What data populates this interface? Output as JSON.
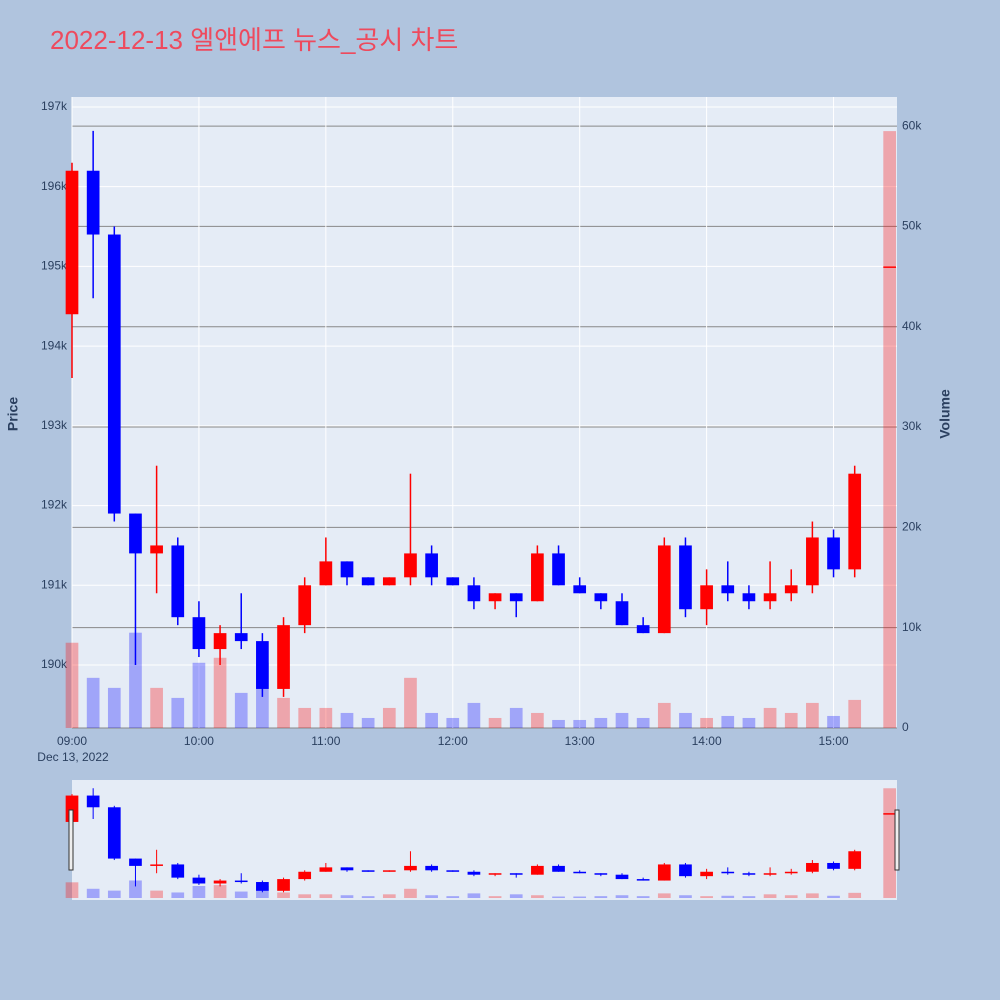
{
  "chart_data": {
    "type": "candlestick",
    "title": "2022-12-13 엘앤에프 뉴스_공시 차트",
    "y_title": "Price",
    "y2_title": "Volume",
    "date_label": "Dec 13, 2022",
    "x": [
      "09:00",
      "09:10",
      "09:20",
      "09:30",
      "09:40",
      "09:50",
      "10:00",
      "10:10",
      "10:20",
      "10:30",
      "10:40",
      "10:50",
      "11:00",
      "11:10",
      "11:20",
      "11:30",
      "11:40",
      "11:50",
      "12:00",
      "12:10",
      "12:20",
      "12:30",
      "12:40",
      "12:50",
      "13:00",
      "13:10",
      "13:20",
      "13:30",
      "13:40",
      "13:50",
      "14:00",
      "14:10",
      "14:20",
      "14:30",
      "14:40",
      "14:50",
      "15:00",
      "15:10",
      "15:30"
    ],
    "open": [
      194400,
      196200,
      195400,
      191900,
      191400,
      191500,
      190600,
      190200,
      190400,
      190300,
      189700,
      190500,
      191000,
      191300,
      191100,
      191000,
      191100,
      191400,
      191100,
      191000,
      190800,
      190900,
      190800,
      191400,
      191000,
      190900,
      190800,
      190500,
      190400,
      191500,
      190700,
      191000,
      190900,
      190800,
      190900,
      191000,
      191600,
      191200,
      195000
    ],
    "high": [
      196300,
      196700,
      195500,
      191900,
      192500,
      191600,
      190800,
      190500,
      190900,
      190400,
      190600,
      191100,
      191600,
      191300,
      191100,
      191100,
      192400,
      191500,
      191100,
      191100,
      190900,
      190900,
      191500,
      191500,
      191100,
      190900,
      190900,
      190600,
      191600,
      191600,
      191200,
      191300,
      191000,
      191300,
      191200,
      191800,
      191700,
      192500,
      195000
    ],
    "low": [
      193600,
      194600,
      191800,
      190000,
      190900,
      190500,
      190100,
      190000,
      190200,
      189600,
      189600,
      190400,
      191000,
      191000,
      191000,
      191000,
      191000,
      191000,
      191000,
      190700,
      190700,
      190600,
      190800,
      191000,
      190900,
      190700,
      190500,
      190400,
      190400,
      190600,
      190500,
      190800,
      190700,
      190700,
      190800,
      190900,
      191100,
      191100,
      195000
    ],
    "close": [
      196200,
      195400,
      191900,
      191400,
      191500,
      190600,
      190200,
      190400,
      190300,
      189700,
      190500,
      191000,
      191300,
      191100,
      191000,
      191100,
      191400,
      191100,
      191000,
      190800,
      190900,
      190800,
      191400,
      191000,
      190900,
      190800,
      190500,
      190400,
      191500,
      190700,
      191000,
      190900,
      190800,
      190900,
      191000,
      191600,
      191200,
      192400,
      195000
    ],
    "volume": [
      8500,
      5000,
      4000,
      9500,
      4000,
      3000,
      6500,
      7000,
      3500,
      6500,
      3000,
      2000,
      2000,
      1500,
      1000,
      2000,
      5000,
      1500,
      1000,
      2500,
      1000,
      2000,
      1500,
      800,
      800,
      1000,
      1500,
      1000,
      2500,
      1500,
      1000,
      1200,
      1000,
      2000,
      1500,
      2500,
      1200,
      2800,
      59500
    ],
    "increasing_color": "#ff0000",
    "decreasing_color": "#0000ff",
    "xlim": [
      "09:00",
      "15:30"
    ],
    "xticks": [
      "09:00",
      "10:00",
      "11:00",
      "12:00",
      "13:00",
      "14:00",
      "15:00"
    ],
    "ylim": [
      189210,
      197125
    ],
    "yticks": [
      {
        "value": 190000,
        "label": "190k"
      },
      {
        "value": 191000,
        "label": "191k"
      },
      {
        "value": 192000,
        "label": "192k"
      },
      {
        "value": 193000,
        "label": "193k"
      },
      {
        "value": 194000,
        "label": "194k"
      },
      {
        "value": 195000,
        "label": "195k"
      },
      {
        "value": 196000,
        "label": "196k"
      },
      {
        "value": 197000,
        "label": "197k"
      }
    ],
    "y2lim": [
      0,
      62900
    ],
    "y2ticks": [
      0,
      {
        "value": 10000,
        "label": "10k"
      },
      {
        "value": 20000,
        "label": "20k"
      },
      {
        "value": 30000,
        "label": "30k"
      },
      {
        "value": 40000,
        "label": "40k"
      },
      {
        "value": 50000,
        "label": "50k"
      },
      {
        "value": 60000,
        "label": "60k"
      }
    ],
    "grid": true,
    "rangeslider": true
  }
}
